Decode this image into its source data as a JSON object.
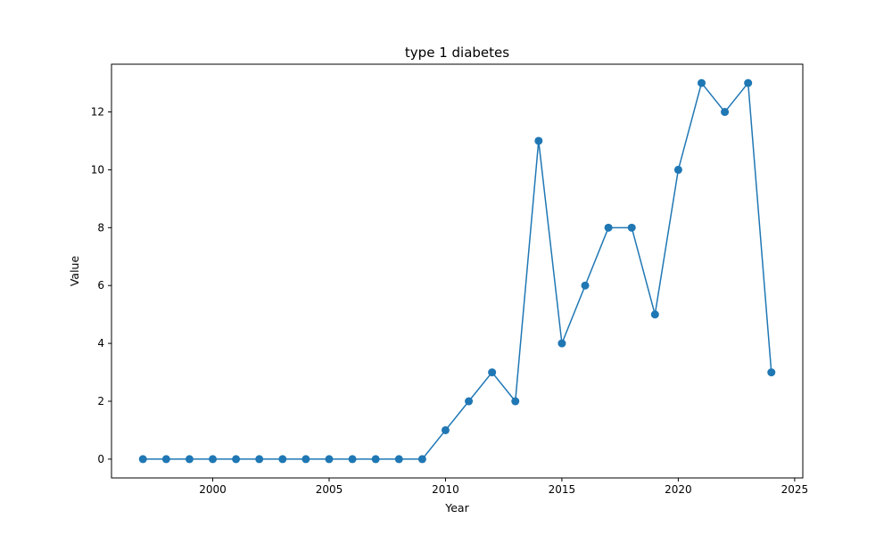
{
  "chart_data": {
    "type": "line",
    "title": "type 1 diabetes",
    "xlabel": "Year",
    "ylabel": "Value",
    "xlim": [
      1995.65,
      2025.35
    ],
    "ylim": [
      -0.65,
      13.65
    ],
    "x_ticks": [
      2000,
      2005,
      2010,
      2015,
      2020,
      2025
    ],
    "y_ticks": [
      0,
      2,
      4,
      6,
      8,
      10,
      12
    ],
    "grid": false,
    "color": "#1f77b4",
    "marker": "circle",
    "x": [
      1997,
      1998,
      1999,
      2000,
      2001,
      2002,
      2003,
      2004,
      2005,
      2006,
      2007,
      2008,
      2009,
      2010,
      2011,
      2012,
      2013,
      2014,
      2015,
      2016,
      2017,
      2018,
      2019,
      2020,
      2021,
      2022,
      2023,
      2024
    ],
    "y": [
      0,
      0,
      0,
      0,
      0,
      0,
      0,
      0,
      0,
      0,
      0,
      0,
      0,
      1,
      2,
      3,
      2,
      11,
      4,
      6,
      8,
      8,
      5,
      10,
      13,
      12,
      13,
      3
    ]
  }
}
